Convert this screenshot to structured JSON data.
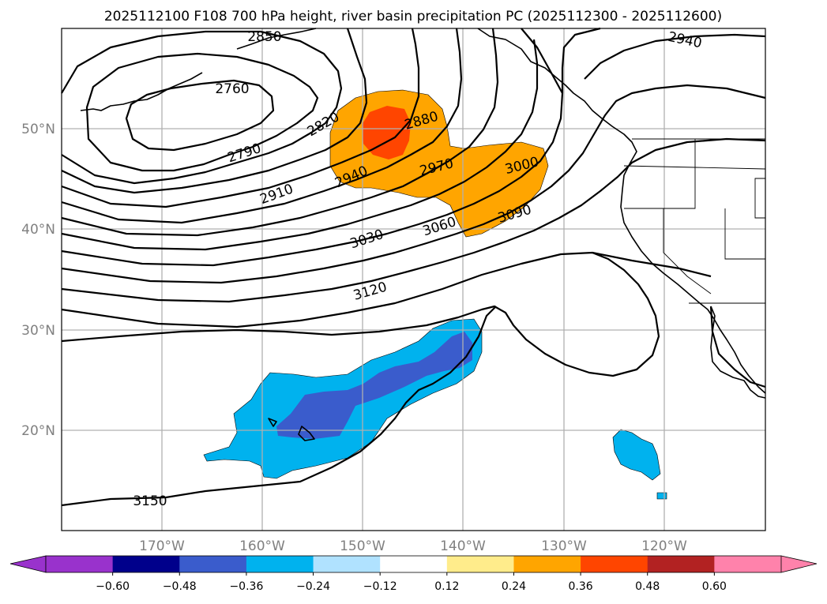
{
  "title": "2025112100 F108 700 hPa height, river basin precipitation PC (2025112300 - 2025112600)",
  "lat_labels": [
    "50°N",
    "40°N",
    "30°N",
    "20°N"
  ],
  "lon_labels": [
    "170°W",
    "160°W",
    "150°W",
    "140°W",
    "130°W",
    "120°W"
  ],
  "contour_labels": [
    "2850",
    "2940",
    "2760",
    "2820",
    "2880",
    "2790",
    "2970",
    "3000",
    "2940",
    "2910",
    "3030",
    "3060",
    "3090",
    "3120",
    "3150"
  ],
  "colorbar": {
    "tick_labels": [
      "−0.60",
      "−0.48",
      "−0.36",
      "−0.24",
      "−0.12",
      "0.12",
      "0.24",
      "0.36",
      "0.48",
      "0.60"
    ],
    "colors": [
      "#9932cc",
      "#00008b",
      "#3a5ccc",
      "#00b2ee",
      "#b0e2ff",
      "#ffffff",
      "#ffec8b",
      "#ffa500",
      "#ff4500",
      "#b22222",
      "#ff82ab",
      "#ff82ab"
    ]
  },
  "map_colors": {
    "strong_negative": "#3a5ccc",
    "moderate_negative": "#00b2ee",
    "moderate_positive": "#ffa500",
    "strong_positive": "#ff4500"
  }
}
